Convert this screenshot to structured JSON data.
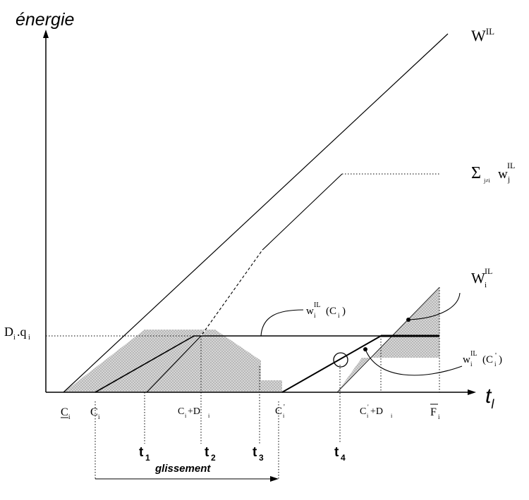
{
  "axes": {
    "y_label": "énergie",
    "x_label": "t",
    "x_label_sub": "l"
  },
  "curves": {
    "W_total": {
      "base": "W",
      "sup": "IL"
    },
    "sum_others": {
      "sigma": "Σ",
      "index": "j≠i",
      "base": "w",
      "sub": "j",
      "sup": "IL"
    },
    "W_i": {
      "base": "W",
      "sub": "i",
      "sup": "IL"
    },
    "w_i_Ci": {
      "base": "w",
      "sub": "i",
      "sup": "IL",
      "arg": "(C",
      "arg_sub": "i",
      "arg_close": ")"
    },
    "w_i_Ci_prime": {
      "base": "w",
      "sub": "i",
      "sup": "IL",
      "arg": "(C",
      "arg_sub": "i",
      "arg_prime": "'",
      "arg_close": ")"
    }
  },
  "level": {
    "base": "D",
    "sub": "i",
    "mid": ".q",
    "sub2": "i"
  },
  "x_ticks": {
    "C_under": {
      "base": "C",
      "sub": "i"
    },
    "C": {
      "base": "C",
      "sub": "i"
    },
    "C_plus_D": {
      "base": "C",
      "sub": "i",
      "plus": "+D",
      "sub2": "i"
    },
    "C_prime": {
      "base": "C",
      "sub": "i",
      "prime": "'"
    },
    "C_prime_plus_D": {
      "base": "C",
      "sub": "i",
      "prime": "'",
      "plus": "+D",
      "sub2": "i"
    },
    "F_bar": {
      "base": "F",
      "sub": "i"
    }
  },
  "times": {
    "t1": {
      "base": "t",
      "sub": "1"
    },
    "t2": {
      "base": "t",
      "sub": "2"
    },
    "t3": {
      "base": "t",
      "sub": "3"
    },
    "t4": {
      "base": "t",
      "sub": "4"
    }
  },
  "shift_label": "glissement",
  "colors": {
    "ink": "#000000",
    "shade": "#c4c4c4",
    "background": "#ffffff"
  }
}
